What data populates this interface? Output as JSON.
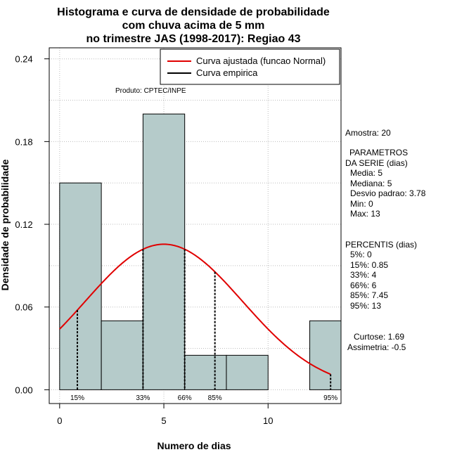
{
  "chart_data": {
    "type": "histogram",
    "title_lines": [
      "Histograma e curva de densidade de probabilidade",
      "com chuva acima de 5 mm",
      "no trimestre JAS (1998-2017): Regiao 43"
    ],
    "xlabel": "Numero de dias",
    "ylabel": "Densidade de probabilidade",
    "xlim": [
      -0.5,
      13.5
    ],
    "ylim": [
      -0.01,
      0.248
    ],
    "xticks": [
      0,
      5,
      10
    ],
    "yticks": [
      0.0,
      0.06,
      0.12,
      0.18,
      0.24
    ],
    "ytick_labels": [
      "0.00",
      "0.06",
      "0.12",
      "0.18",
      "0.24"
    ],
    "bars": [
      {
        "x0": 0,
        "x1": 2,
        "density": 0.15
      },
      {
        "x0": 2,
        "x1": 4,
        "density": 0.05
      },
      {
        "x0": 4,
        "x1": 6,
        "density": 0.2
      },
      {
        "x0": 6,
        "x1": 8,
        "density": 0.025
      },
      {
        "x0": 8,
        "x1": 10,
        "density": 0.025
      },
      {
        "x0": 10,
        "x1": 12,
        "density": 0.0
      },
      {
        "x0": 12,
        "x1": 14,
        "density": 0.05
      }
    ],
    "normal_curve": {
      "mean": 5,
      "sd": 3.78,
      "x_from": 0,
      "x_to": 13
    },
    "percentile_lines": [
      {
        "label": "15%",
        "x": 0.85
      },
      {
        "label": "33%",
        "x": 4
      },
      {
        "label": "66%",
        "x": 6
      },
      {
        "label": "85%",
        "x": 7.45
      },
      {
        "label": "95%",
        "x": 13
      }
    ],
    "legend": [
      {
        "label": "Curva ajustada (funcao Normal)",
        "color": "#e00000"
      },
      {
        "label": "Curva empirica",
        "color": "#000000"
      }
    ],
    "product_label": "Produto: CPTEC/INPE",
    "colors": {
      "bar_fill": "#b5cbca",
      "curve": "#e00000",
      "grid": "#bdbdbd"
    }
  },
  "stats": {
    "amostra": "Amostra: 20",
    "parametros_header_1": "PARAMETROS",
    "parametros_header_2": "DA SERIE (dias)",
    "media": "Media: 5",
    "mediana": "Mediana: 5",
    "desvio": "Desvio padrao: 3.78",
    "min": "Min: 0",
    "max": "Max: 13",
    "percentis_header": "PERCENTIS (dias)",
    "p5": "5%: 0",
    "p15": "15%: 0.85",
    "p33": "33%: 4",
    "p66": "66%: 6",
    "p85": "85%: 7.45",
    "p95": "95%: 13",
    "curtose": "Curtose: 1.69",
    "assimetria": "Assimetria: -0.5"
  }
}
